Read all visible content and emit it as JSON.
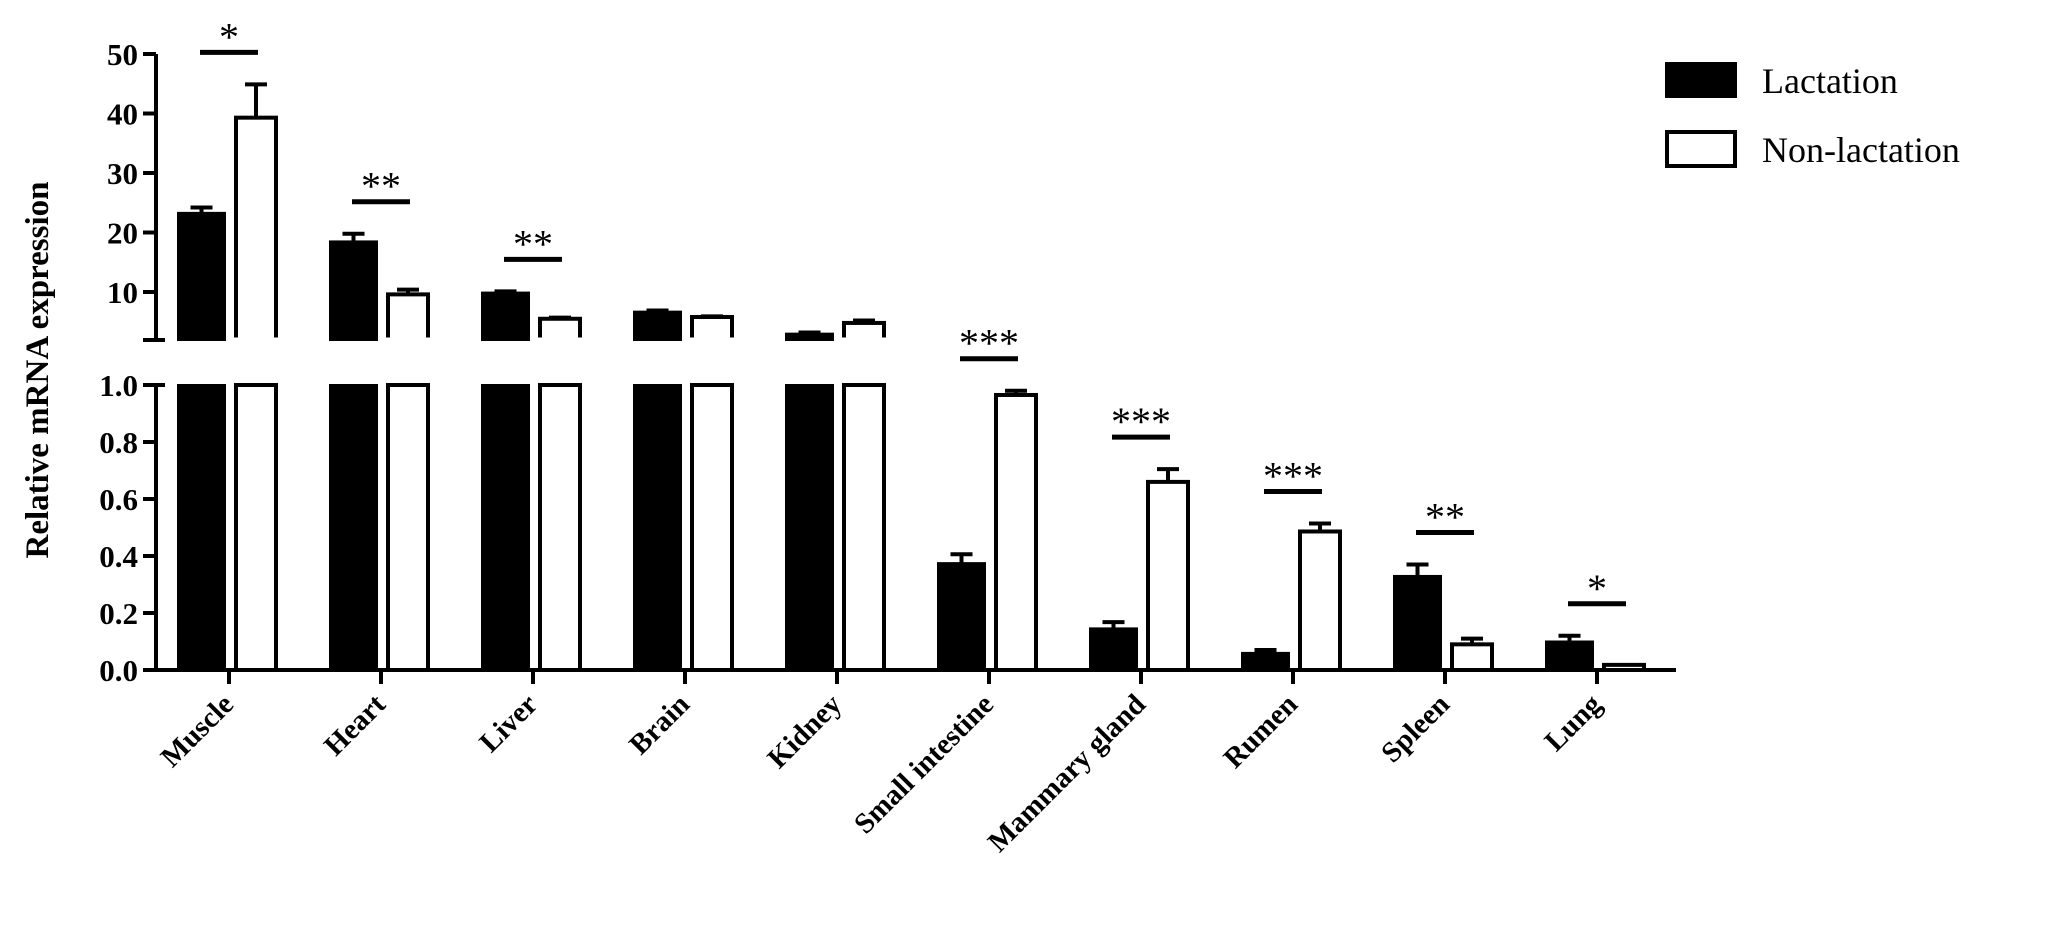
{
  "chart_data": {
    "type": "bar",
    "title": "",
    "xlabel": "",
    "ylabel": "Relative mRNA expression",
    "y_axis_break": true,
    "ylim_lower": [
      0,
      1.0
    ],
    "ylim_upper": [
      2,
      50
    ],
    "yticks_lower": [
      "0.0",
      "0.2",
      "0.4",
      "0.6",
      "0.8",
      "1.0"
    ],
    "yticks_upper": [
      "10",
      "20",
      "30",
      "40",
      "50"
    ],
    "categories": [
      "Muscle",
      "Heart",
      "Liver",
      "Brain",
      "Kidney",
      "Small intestine",
      "Mammary gland",
      "Rumen",
      "Spleen",
      "Lung"
    ],
    "series": [
      {
        "name": "Lactation",
        "color": "#000000",
        "values": [
          23.3,
          18.5,
          9.9,
          6.7,
          3.0,
          0.375,
          0.146,
          0.06,
          0.33,
          0.1
        ],
        "errors": [
          0.9,
          1.3,
          0.2,
          0.2,
          0.2,
          0.031,
          0.022,
          0.01,
          0.04,
          0.02
        ]
      },
      {
        "name": "Non-lactation",
        "color": "#ffffff",
        "values": [
          39.3,
          9.6,
          5.5,
          5.8,
          4.8,
          0.965,
          0.66,
          0.486,
          0.09,
          0.018
        ],
        "errors": [
          5.6,
          0.8,
          0.2,
          0.1,
          0.4,
          0.015,
          0.045,
          0.028,
          0.02,
          0.0
        ]
      }
    ],
    "significance": [
      "*",
      "**",
      "**",
      "",
      "",
      "***",
      "***",
      "***",
      "**",
      "*"
    ],
    "legend": {
      "position": "top-right",
      "entries": [
        "Lactation",
        "Non-lactation"
      ]
    },
    "grid": false
  }
}
